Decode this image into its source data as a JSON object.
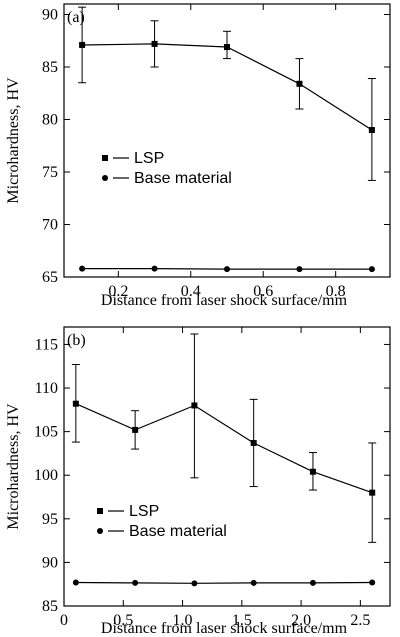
{
  "chart_data": [
    {
      "type": "line",
      "panel_label": "(a)",
      "xlabel": "Distance from laser shock surface/mm",
      "ylabel": "Microhardness, HV",
      "xlim": [
        0.05,
        0.95
      ],
      "ylim": [
        65,
        91
      ],
      "xticks": [
        0.2,
        0.4,
        0.6,
        0.8
      ],
      "xtick_labels": [
        "0.2",
        "0.4",
        "0.6",
        "0.8"
      ],
      "yticks": [
        65,
        70,
        75,
        80,
        85,
        90
      ],
      "ytick_labels": [
        "65",
        "70",
        "75",
        "80",
        "85",
        "90"
      ],
      "legend_position": "middle-left",
      "series": [
        {
          "name": "LSP",
          "marker": "square",
          "x": [
            0.1,
            0.3,
            0.5,
            0.7,
            0.9
          ],
          "y": [
            87.1,
            87.2,
            86.9,
            83.4,
            79.0
          ],
          "err_low": [
            83.5,
            85.0,
            85.8,
            81.0,
            74.2
          ],
          "err_high": [
            90.7,
            89.4,
            88.4,
            85.8,
            83.9
          ]
        },
        {
          "name": "Base material",
          "marker": "circle",
          "x": [
            0.1,
            0.3,
            0.5,
            0.7,
            0.9
          ],
          "y": [
            65.8,
            65.8,
            65.75,
            65.75,
            65.75
          ]
        }
      ]
    },
    {
      "type": "line",
      "panel_label": "(b)",
      "xlabel": "Distance from laser shock surface/mm",
      "ylabel": "Microhardness, HV",
      "xlim": [
        0,
        2.75
      ],
      "ylim": [
        85,
        117
      ],
      "xticks": [
        0,
        0.5,
        1.0,
        1.5,
        2.0,
        2.5
      ],
      "xtick_labels": [
        "0",
        "0.5",
        "1.0",
        "1.5",
        "2.0",
        "2.5"
      ],
      "yticks": [
        85,
        90,
        95,
        100,
        105,
        110,
        115
      ],
      "ytick_labels": [
        "85",
        "90",
        "95",
        "100",
        "105",
        "110",
        "115"
      ],
      "legend_position": "lower-left",
      "series": [
        {
          "name": "LSP",
          "marker": "square",
          "x": [
            0.1,
            0.6,
            1.1,
            1.6,
            2.1,
            2.6
          ],
          "y": [
            108.2,
            105.2,
            108.0,
            103.7,
            100.4,
            98.0
          ],
          "err_low": [
            103.8,
            103.0,
            99.7,
            98.7,
            98.3,
            92.3
          ],
          "err_high": [
            112.7,
            107.4,
            116.2,
            108.7,
            102.6,
            103.7
          ]
        },
        {
          "name": "Base material",
          "marker": "circle",
          "x": [
            0.1,
            0.6,
            1.1,
            1.6,
            2.1,
            2.6
          ],
          "y": [
            87.7,
            87.65,
            87.6,
            87.65,
            87.65,
            87.7
          ]
        }
      ]
    }
  ]
}
